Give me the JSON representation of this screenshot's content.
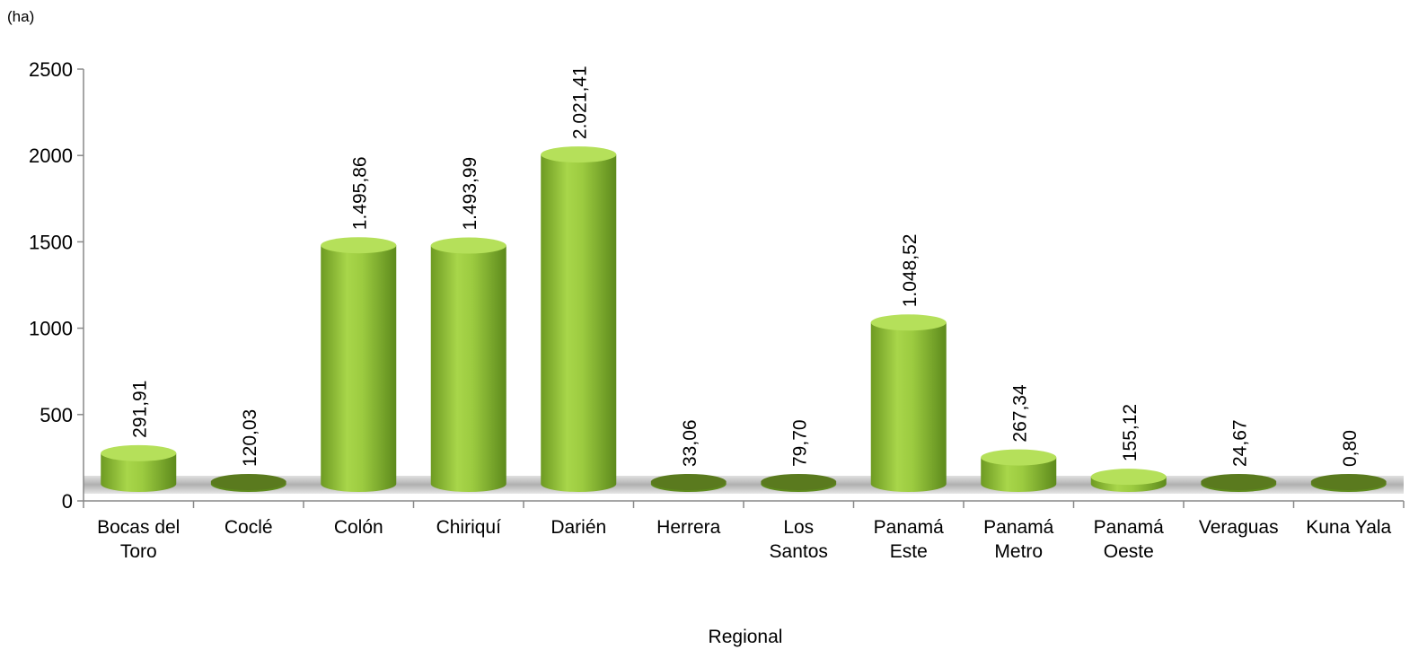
{
  "chart_data": {
    "type": "bar",
    "unit_label": "(ha)",
    "xlabel": "Regional",
    "ylabel": "",
    "ylim": [
      0,
      2500
    ],
    "yticks": [
      0,
      500,
      1000,
      1500,
      2000,
      2500
    ],
    "categories": [
      [
        "Bocas del",
        "Toro"
      ],
      [
        "Coclé"
      ],
      [
        "Colón"
      ],
      [
        "Chiriquí"
      ],
      [
        "Darién"
      ],
      [
        "Herrera"
      ],
      [
        "Los",
        "Santos"
      ],
      [
        "Panamá",
        "Este"
      ],
      [
        "Panamá",
        "Metro"
      ],
      [
        "Panamá",
        "Oeste"
      ],
      [
        "Veraguas"
      ],
      [
        "Kuna Yala"
      ]
    ],
    "values": [
      291.91,
      120.03,
      1495.86,
      1493.99,
      2021.41,
      33.06,
      79.7,
      1048.52,
      267.34,
      155.12,
      24.67,
      0.8
    ],
    "value_labels": [
      "291,91",
      "120,03",
      "1.495,86",
      "1.493,99",
      "2.021,41",
      "33,06",
      "79,70",
      "1.048,52",
      "267,34",
      "155,12",
      "24,67",
      "0,80"
    ],
    "colors": {
      "bar_light": "#a8d64a",
      "bar_mid": "#8cbc35",
      "bar_dark": "#5d8a1c",
      "bar_top": "#b5e05a",
      "floor": "#c8c8c8"
    },
    "grid": false,
    "legend": "none",
    "style": "3d-cylinder"
  }
}
